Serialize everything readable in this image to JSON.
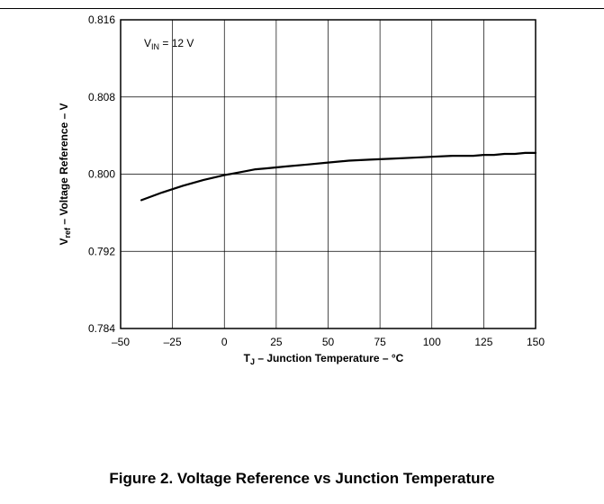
{
  "caption": "Figure 2. Voltage Reference vs Junction Temperature",
  "chart_data": {
    "type": "line",
    "title": "",
    "xlabel": {
      "main": "T",
      "sub": "J",
      "rest": " – Junction Temperature – °C"
    },
    "ylabel": {
      "main": "V",
      "sub": "ref",
      "rest": " – Voltage Reference – V"
    },
    "xlim": [
      -50,
      150
    ],
    "ylim": [
      0.784,
      0.816
    ],
    "x_ticks": [
      -50,
      -25,
      0,
      25,
      50,
      75,
      100,
      125,
      150
    ],
    "x_tick_labels": [
      "–50",
      "–25",
      "0",
      "25",
      "50",
      "75",
      "100",
      "125",
      "150"
    ],
    "y_ticks": [
      0.784,
      0.792,
      0.8,
      0.808,
      0.816
    ],
    "y_tick_labels": [
      "0.784",
      "0.792",
      "0.800",
      "0.808",
      "0.816"
    ],
    "grid": true,
    "annotation": {
      "main": "V",
      "sub": "IN",
      "rest": " = 12 V"
    },
    "series": [
      {
        "color": "#000000",
        "x": [
          -40,
          -30,
          -20,
          -10,
          0,
          10,
          15,
          20,
          25,
          30,
          40,
          50,
          60,
          70,
          80,
          90,
          100,
          110,
          120,
          125,
          130,
          135,
          140,
          145,
          150
        ],
        "y": [
          0.7973,
          0.7981,
          0.7988,
          0.7994,
          0.7999,
          0.8003,
          0.8005,
          0.8006,
          0.8007,
          0.8008,
          0.801,
          0.8012,
          0.8014,
          0.8015,
          0.8016,
          0.8017,
          0.8018,
          0.8019,
          0.8019,
          0.802,
          0.802,
          0.8021,
          0.8021,
          0.8022,
          0.8022
        ]
      }
    ]
  }
}
